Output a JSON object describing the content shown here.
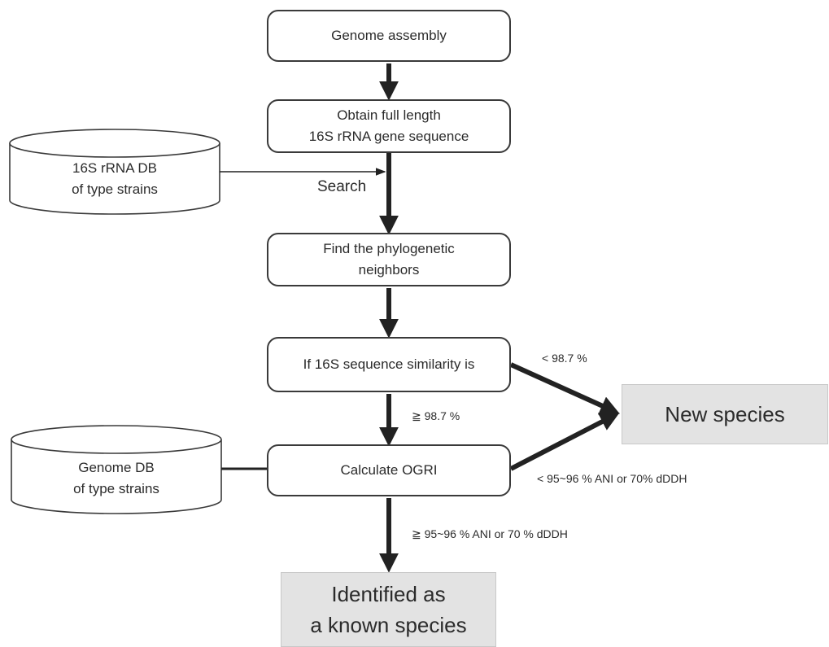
{
  "nodes": {
    "genome_assembly": "Genome assembly",
    "obtain_16s": "Obtain full length\n16S rRNA gene sequence",
    "find_neighbors": "Find the phylogenetic\nneighbors",
    "similarity_check": "If 16S sequence similarity is",
    "calculate_ogri": "Calculate OGRI",
    "new_species": "New species",
    "known_species": "Identified as\na known species"
  },
  "databases": {
    "rrna_db": "16S rRNA DB\nof type strains",
    "genome_db": "Genome DB\nof type strains"
  },
  "edge_labels": {
    "search": "Search",
    "below_98_7": "< 98.7 %",
    "above_98_7": "≧ 98.7 %",
    "below_ani": "< 95~96 % ANI or 70% dDDH",
    "above_ani": "≧ 95~96 % ANI or 70 % dDDH"
  }
}
